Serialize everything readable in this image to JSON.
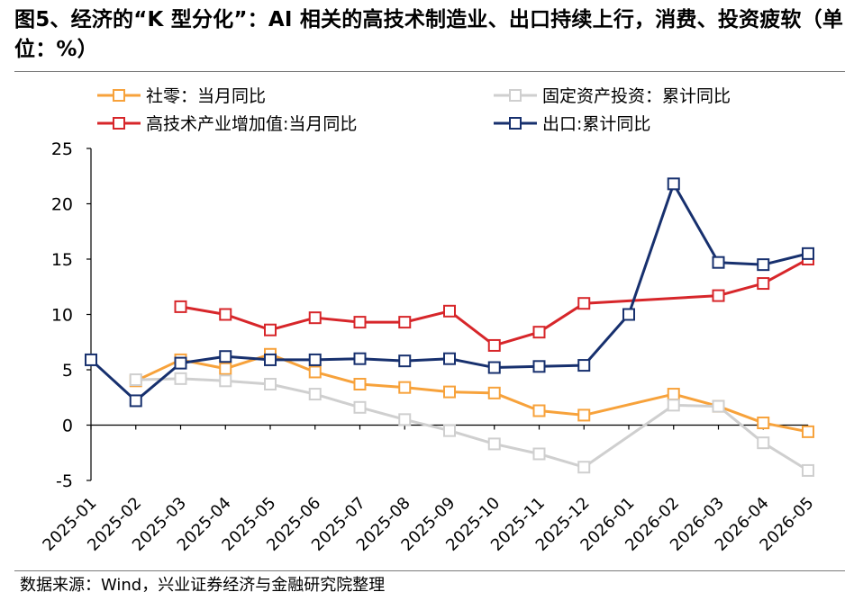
{
  "title": "图5、经济的“K 型分化”：AI 相关的高技术制造业、出口持续上行，消费、投资疲软（单位：%）",
  "source": "数据来源：Wind，兴业证券经济与金融研究院整理",
  "chart_data": {
    "type": "line",
    "categories": [
      "2025-01",
      "2025-02",
      "2025-03",
      "2025-04",
      "2025-05",
      "2025-06",
      "2025-07",
      "2025-08",
      "2025-09",
      "2025-10",
      "2025-11",
      "2025-12",
      "2026-01",
      "2026-02",
      "2026-03",
      "2026-04",
      "2026-05"
    ],
    "ylim": [
      -5,
      25
    ],
    "yticks": [
      -5,
      0,
      5,
      10,
      15,
      20,
      25
    ],
    "legend_position": "top",
    "grid": false,
    "series": [
      {
        "name": "社零：当月同比",
        "color": "#F7A23B",
        "values": [
          null,
          4.0,
          5.9,
          5.1,
          6.4,
          4.8,
          3.7,
          3.4,
          3.0,
          2.9,
          1.3,
          0.9,
          null,
          2.8,
          1.7,
          0.2,
          -0.6
        ]
      },
      {
        "name": "固定资产投资：累计同比",
        "color": "#CFCFCF",
        "values": [
          null,
          4.1,
          4.2,
          4.0,
          3.7,
          2.8,
          1.6,
          0.5,
          -0.5,
          -1.7,
          -2.6,
          -3.8,
          null,
          1.8,
          1.7,
          -1.6,
          -4.1
        ]
      },
      {
        "name": "高技术产业增加值:当月同比",
        "color": "#D7262A",
        "values": [
          null,
          null,
          10.7,
          10.0,
          8.6,
          9.7,
          9.3,
          9.3,
          10.3,
          7.2,
          8.4,
          11.0,
          null,
          null,
          11.7,
          12.8,
          15.0
        ]
      },
      {
        "name": "出口:累计同比",
        "color": "#17306E",
        "values": [
          5.9,
          2.2,
          5.6,
          6.2,
          5.9,
          5.9,
          6.0,
          5.8,
          6.0,
          5.2,
          5.3,
          5.4,
          10.0,
          21.8,
          14.7,
          14.5,
          15.5
        ]
      }
    ]
  }
}
